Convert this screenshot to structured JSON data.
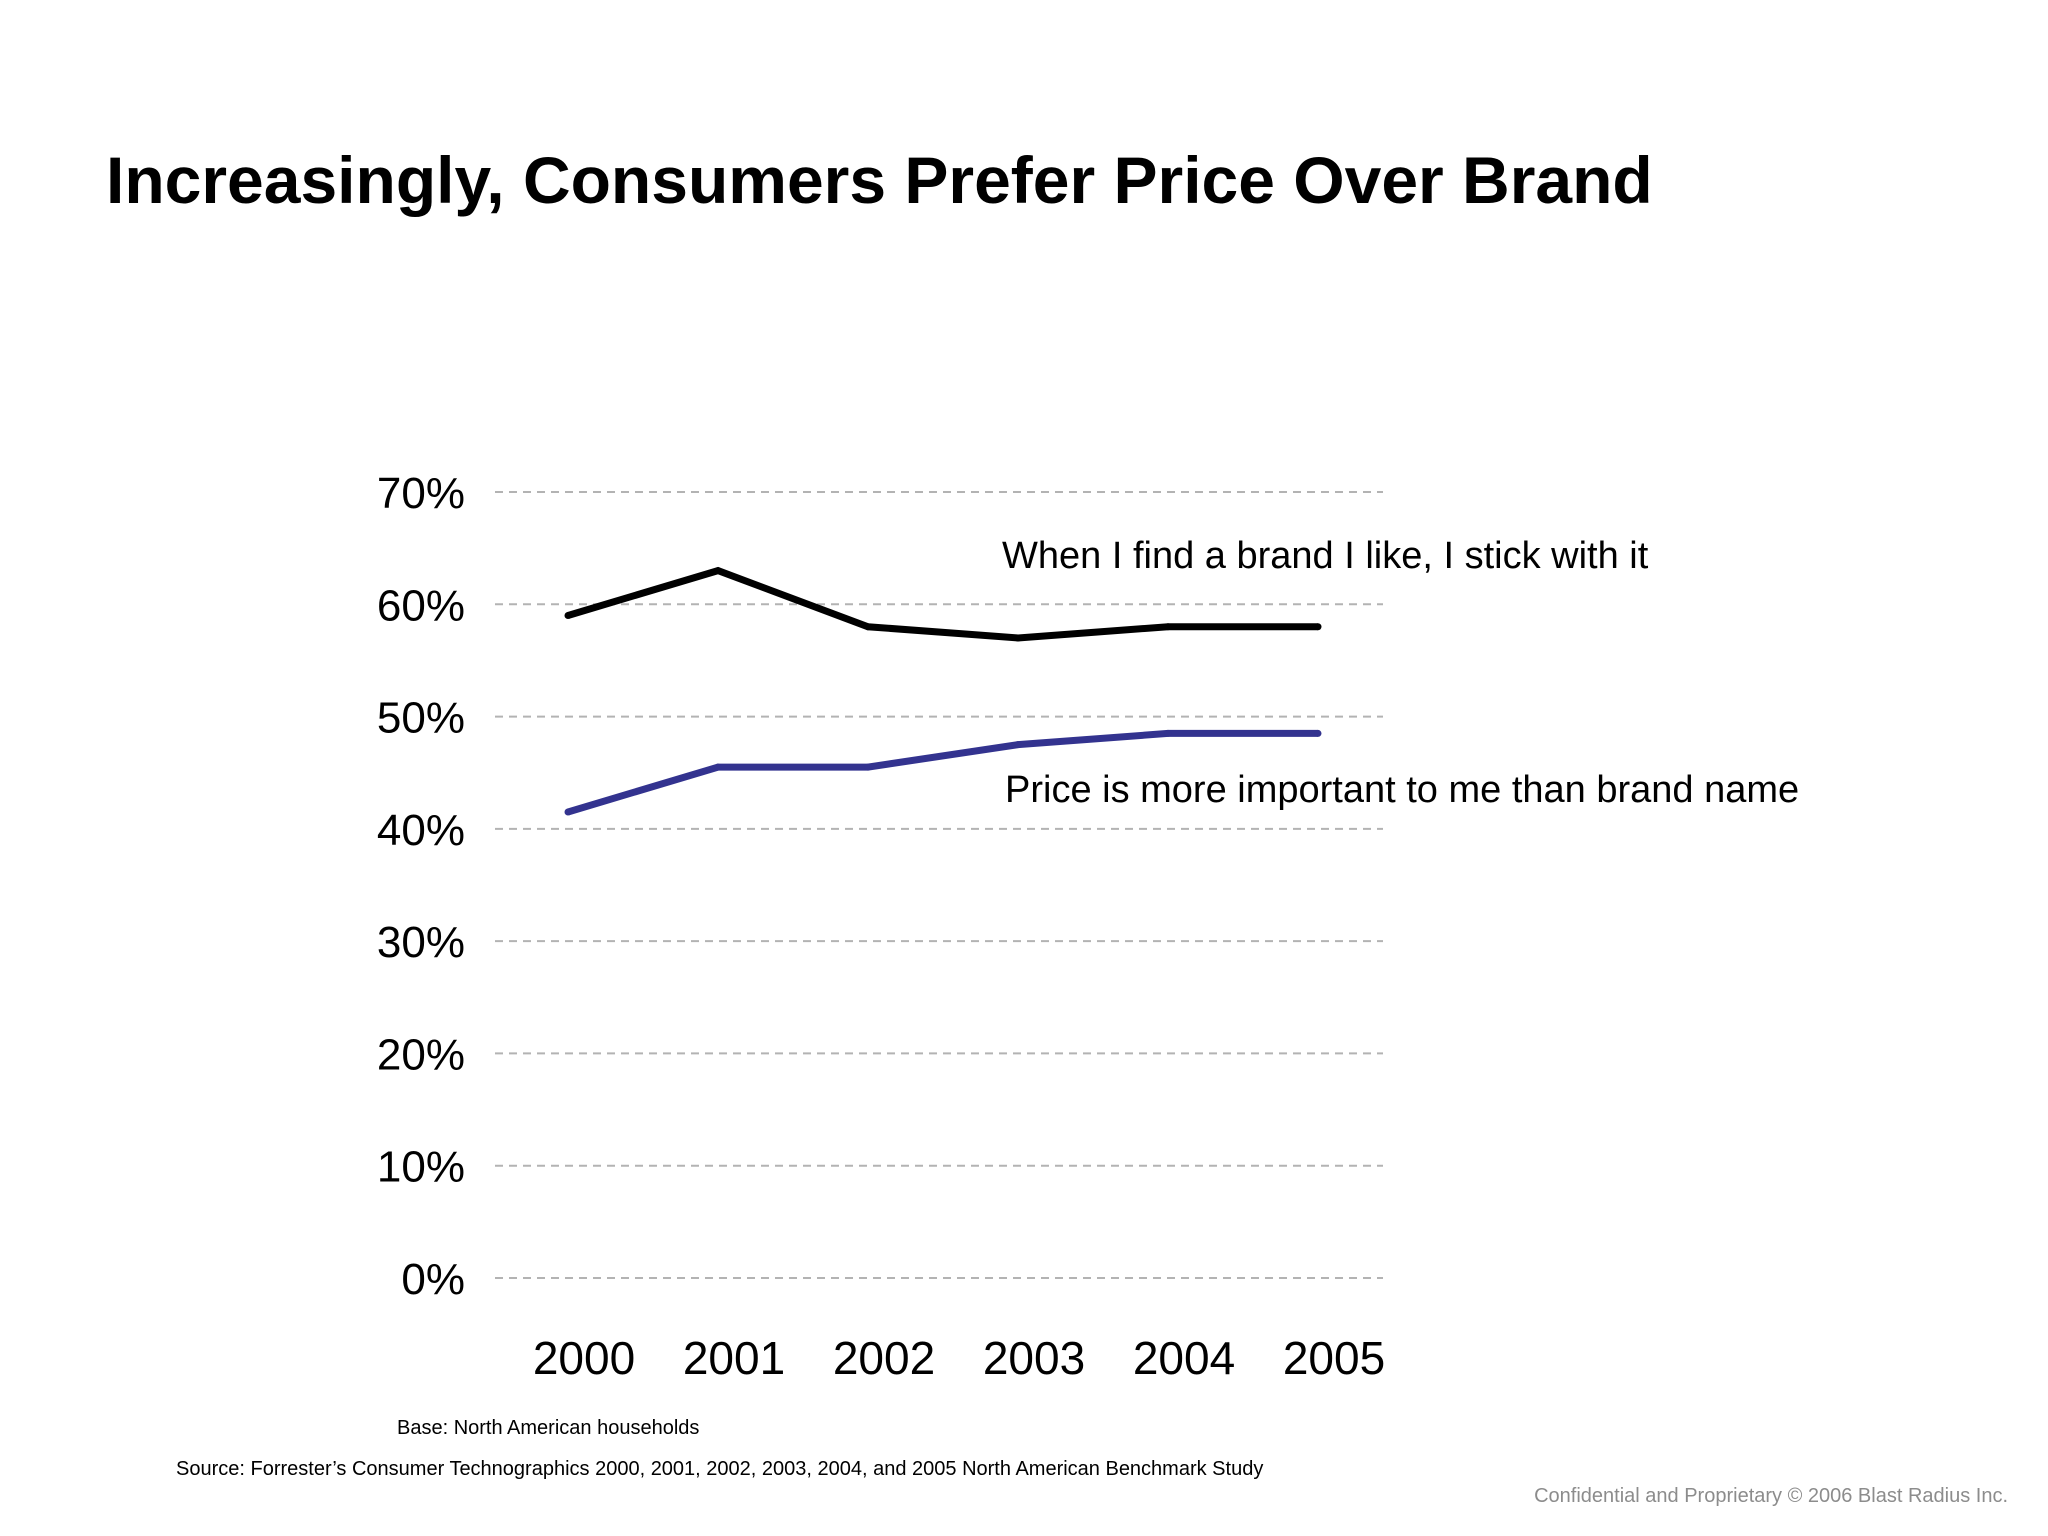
{
  "slide": {
    "title": "Increasingly, Consumers Prefer Price Over Brand",
    "base_note": "Base: North American households",
    "source_note": "Source: Forrester’s Consumer Technographics 2000, 2001, 2002, 2003, 2004, and 2005 North American Benchmark Study",
    "footer": "Confidential and Proprietary © 2006 Blast Radius Inc."
  },
  "chart_data": {
    "type": "line",
    "title": "",
    "xlabel": "",
    "ylabel": "",
    "categories": [
      "2000",
      "2001",
      "2002",
      "2003",
      "2004",
      "2005"
    ],
    "y_ticks": [
      0,
      10,
      20,
      30,
      40,
      50,
      60,
      70
    ],
    "y_tick_labels": [
      "0%",
      "10%",
      "20%",
      "30%",
      "40%",
      "50%",
      "60%",
      "70%"
    ],
    "ylim": [
      0,
      70
    ],
    "grid": true,
    "grid_style": "dashed",
    "legend": "none",
    "series": [
      {
        "name": "When I find a brand I like, I stick with it",
        "values": [
          59,
          63,
          58,
          57,
          58,
          58
        ],
        "color": "#000000"
      },
      {
        "name": "Price is more important to me than brand name",
        "values": [
          41.5,
          45.5,
          45.5,
          47.5,
          48.5,
          48.5
        ],
        "color": "#33338f"
      }
    ],
    "grid_color": "#b3b3b3"
  }
}
